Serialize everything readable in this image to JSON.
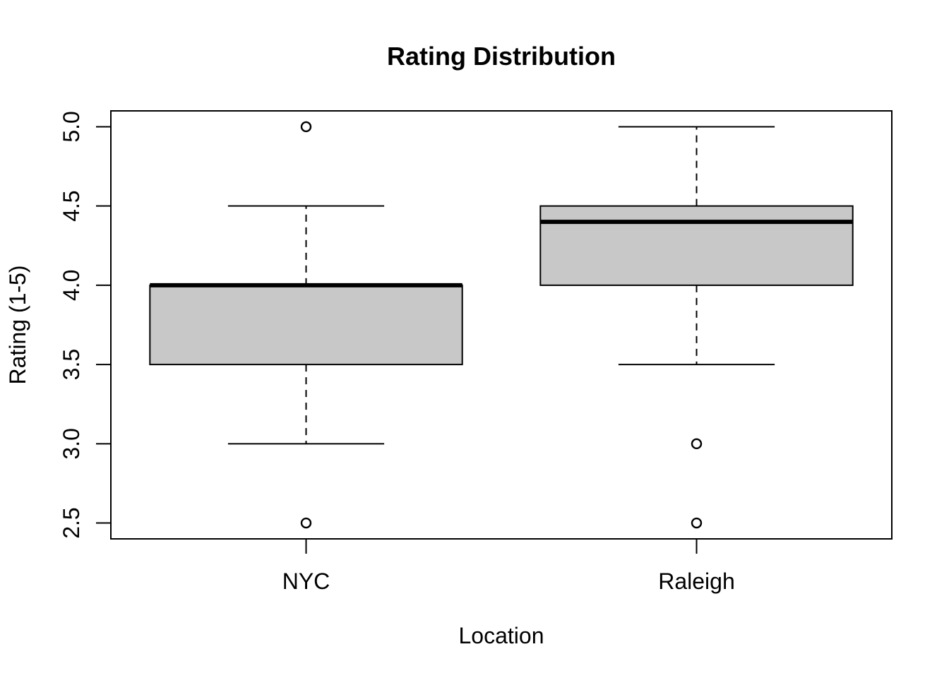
{
  "chart_data": {
    "type": "boxplot",
    "title": "Rating Distribution",
    "xlabel": "Location",
    "ylabel": "Rating (1-5)",
    "ylim": [
      2.4,
      5.1
    ],
    "yticks": [
      "2.5",
      "3.0",
      "3.5",
      "4.0",
      "4.5",
      "5.0"
    ],
    "categories": [
      "NYC",
      "Raleigh"
    ],
    "boxes": [
      {
        "category": "NYC",
        "whisker_low": 3.0,
        "q1": 3.5,
        "median": 4.0,
        "q3": 4.0,
        "whisker_high": 4.5,
        "outliers": [
          5.0,
          2.5
        ]
      },
      {
        "category": "Raleigh",
        "whisker_low": 3.5,
        "q1": 4.0,
        "median": 4.4,
        "q3": 4.5,
        "whisker_high": 5.0,
        "outliers": [
          3.0,
          2.5
        ]
      }
    ],
    "box_fill": "#c8c8c8",
    "grid": false,
    "legend": "none"
  }
}
